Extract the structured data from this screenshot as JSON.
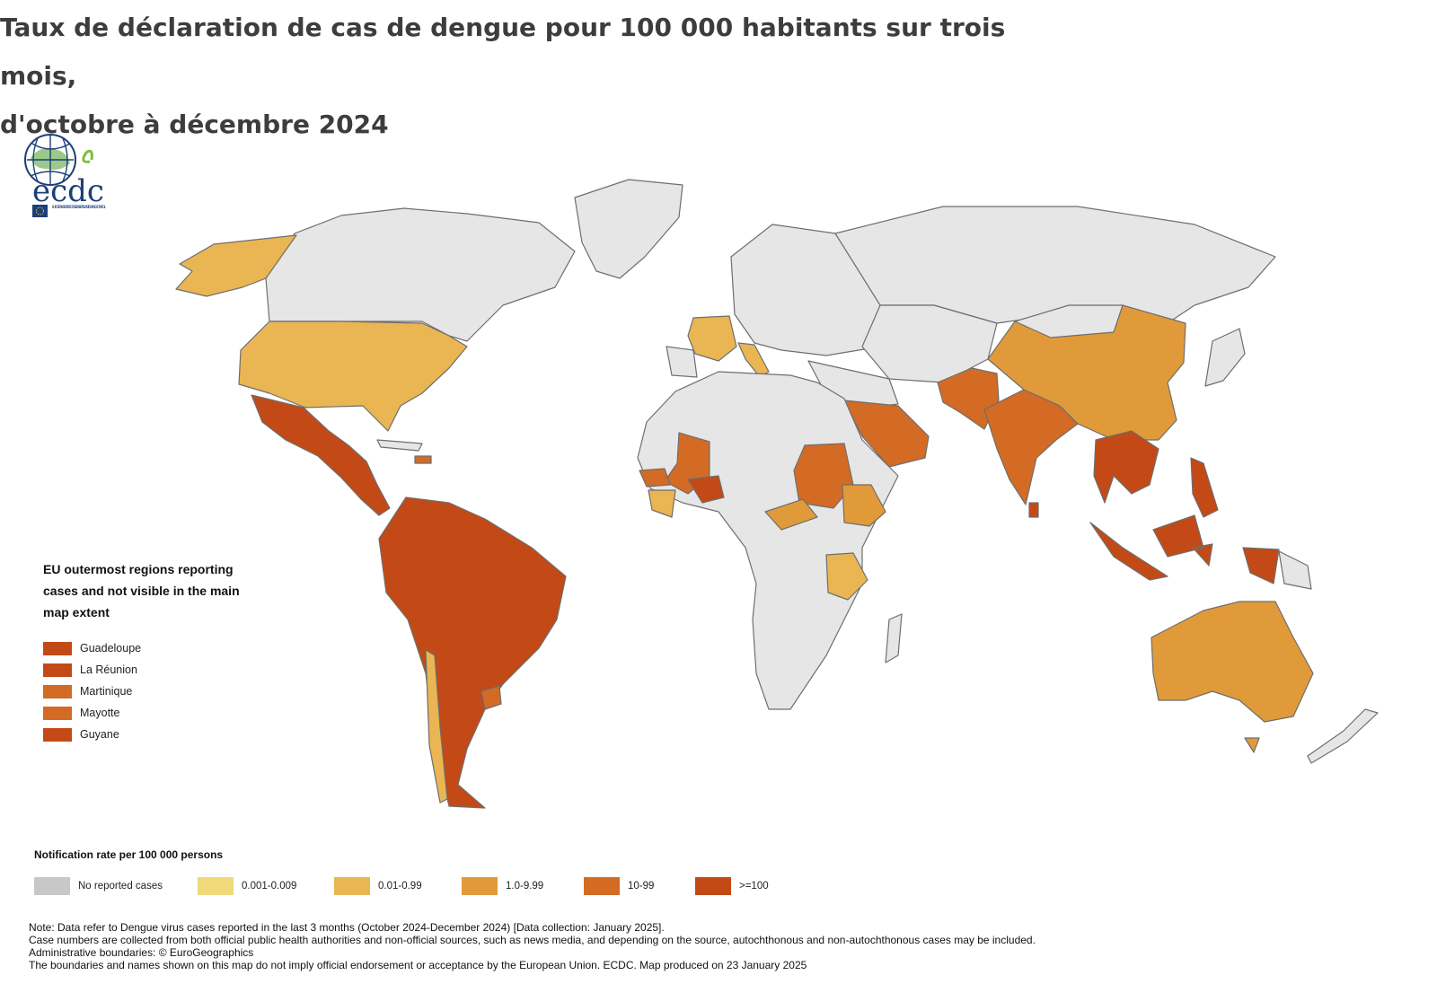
{
  "title": {
    "line1": "Taux de déclaration de cas de dengue pour 100 000 habitants sur trois mois,",
    "line2": "d'octobre à décembre 2024"
  },
  "logo": {
    "text": "ecdc",
    "subtitle": "EUROPEAN CENTRE FOR DISEASE PREVENTION AND CONTROL"
  },
  "colors": {
    "none": "#c8c8c8",
    "land": "#e6e6e6",
    "c1": "#f0d97a",
    "c2": "#e9b653",
    "c3": "#e19a3a",
    "c4": "#d36b25",
    "c5": "#c34a16",
    "border": "#6e6e6e"
  },
  "eu_regions": {
    "title_line1": "EU outermost regions reporting",
    "title_line2": "cases and not visible in the main",
    "title_line3": "map extent",
    "items": [
      {
        "label": "Guadeloupe",
        "class": "c5"
      },
      {
        "label": "La Réunion",
        "class": "c5"
      },
      {
        "label": "Martinique",
        "class": "c4"
      },
      {
        "label": "Mayotte",
        "class": "c4"
      },
      {
        "label": "Guyane",
        "class": "c5"
      }
    ]
  },
  "legend": {
    "title": "Notification rate per 100 000 persons",
    "items": [
      {
        "label": "No reported cases",
        "class": "none"
      },
      {
        "label": "0.001-0.009",
        "class": "c1"
      },
      {
        "label": "0.01-0.99",
        "class": "c2"
      },
      {
        "label": "1.0-9.99",
        "class": "c3"
      },
      {
        "label": "10-99",
        "class": "c4"
      },
      {
        "label": ">=100",
        "class": "c5"
      }
    ]
  },
  "notes": {
    "line1": "Note: Data refer to Dengue virus cases reported in the last 3 months (October 2024-December 2024) [Data collection: January 2025].",
    "line2": "Case numbers are collected from both official public health authorities and non-official sources, such as news media, and depending on the source, autochthonous and non-autochthonous cases may be included.",
    "line3": "Administrative boundaries: © EuroGeographics",
    "line4": "The boundaries and names shown on this map do not imply official endorsement or acceptance by the European Union. ECDC. Map produced on 23 January 2025"
  }
}
